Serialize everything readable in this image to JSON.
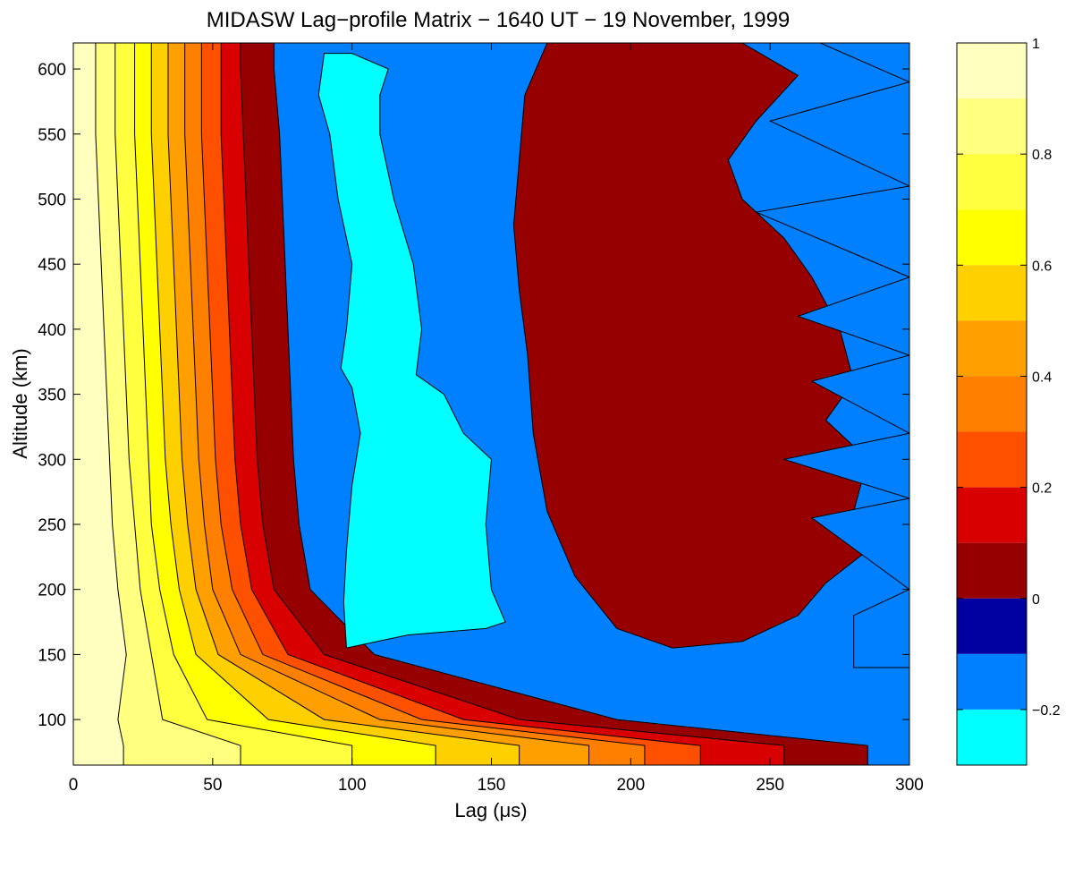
{
  "chart_data": {
    "type": "heatmap",
    "title": "MIDASW Lag−profile Matrix − 1640 UT − 19 November, 1999",
    "xlabel_parts": [
      "Lag (",
      "μ",
      "s)"
    ],
    "ylabel": "Altitude (km)",
    "xlim": [
      0,
      300
    ],
    "ylim": [
      65,
      620
    ],
    "x_ticks": [
      0,
      50,
      100,
      150,
      200,
      250,
      300
    ],
    "x_tick_labels": [
      "0",
      "50",
      "100",
      "150",
      "200",
      "250",
      "300"
    ],
    "y_ticks": [
      100,
      150,
      200,
      250,
      300,
      350,
      400,
      450,
      500,
      550,
      600
    ],
    "y_tick_labels": [
      "100",
      "150",
      "200",
      "250",
      "300",
      "350",
      "400",
      "450",
      "500",
      "550",
      "600"
    ],
    "colorbar": {
      "clim": [
        -0.3,
        1.0
      ],
      "ticks": [
        1,
        0.8,
        0.6,
        0.4,
        0.2,
        0,
        -0.2
      ],
      "tick_labels": [
        "1",
        "0.8",
        "0.6",
        "0.4",
        "0.2",
        "0",
        "−0.2"
      ],
      "levels": [
        {
          "from": 0.9,
          "to": 1.0,
          "color": "#ffffc0"
        },
        {
          "from": 0.8,
          "to": 0.9,
          "color": "#ffff80"
        },
        {
          "from": 0.7,
          "to": 0.8,
          "color": "#ffff40"
        },
        {
          "from": 0.6,
          "to": 0.7,
          "color": "#ffff00"
        },
        {
          "from": 0.5,
          "to": 0.6,
          "color": "#ffd000"
        },
        {
          "from": 0.4,
          "to": 0.5,
          "color": "#ffa000"
        },
        {
          "from": 0.3,
          "to": 0.4,
          "color": "#ff8000"
        },
        {
          "from": 0.2,
          "to": 0.3,
          "color": "#ff5000"
        },
        {
          "from": 0.1,
          "to": 0.2,
          "color": "#d80000"
        },
        {
          "from": 0.0,
          "to": 0.1,
          "color": "#960000"
        },
        {
          "from": -0.1,
          "to": 0.0,
          "color": "#0000a0"
        },
        {
          "from": -0.2,
          "to": -0.1,
          "color": "#0080ff"
        },
        {
          "from": -0.3,
          "to": -0.2,
          "color": "#00ffff"
        }
      ]
    },
    "bands": [
      {
        "level": 0.9,
        "color": "#ffffc0",
        "lag_at_altitude": [
          [
            80,
            18
          ],
          [
            100,
            16
          ],
          [
            150,
            19
          ],
          [
            200,
            16
          ],
          [
            250,
            14
          ],
          [
            300,
            13
          ],
          [
            350,
            12
          ],
          [
            400,
            11
          ],
          [
            450,
            10
          ],
          [
            500,
            9
          ],
          [
            550,
            8
          ],
          [
            600,
            8
          ]
        ]
      },
      {
        "level": 0.8,
        "color": "#ffff80",
        "lag_at_altitude": [
          [
            80,
            60
          ],
          [
            100,
            32
          ],
          [
            150,
            28
          ],
          [
            200,
            24
          ],
          [
            250,
            22
          ],
          [
            300,
            20
          ],
          [
            350,
            19
          ],
          [
            400,
            18
          ],
          [
            450,
            17
          ],
          [
            500,
            16
          ],
          [
            550,
            15
          ],
          [
            600,
            15
          ]
        ]
      },
      {
        "level": 0.7,
        "color": "#ffff40",
        "lag_at_altitude": [
          [
            80,
            100
          ],
          [
            100,
            48
          ],
          [
            150,
            36
          ],
          [
            200,
            31
          ],
          [
            250,
            28
          ],
          [
            300,
            27
          ],
          [
            350,
            26
          ],
          [
            400,
            25
          ],
          [
            450,
            24
          ],
          [
            500,
            23
          ],
          [
            550,
            22
          ],
          [
            600,
            22
          ]
        ]
      },
      {
        "level": 0.6,
        "color": "#ffff00",
        "lag_at_altitude": [
          [
            80,
            130
          ],
          [
            100,
            70
          ],
          [
            150,
            44
          ],
          [
            200,
            38
          ],
          [
            250,
            35
          ],
          [
            300,
            33
          ],
          [
            350,
            32
          ],
          [
            400,
            31
          ],
          [
            450,
            30
          ],
          [
            500,
            29
          ],
          [
            550,
            28
          ],
          [
            600,
            28
          ]
        ]
      },
      {
        "level": 0.5,
        "color": "#ffd000",
        "lag_at_altitude": [
          [
            80,
            160
          ],
          [
            100,
            90
          ],
          [
            150,
            52
          ],
          [
            200,
            44
          ],
          [
            250,
            41
          ],
          [
            300,
            39
          ],
          [
            350,
            38
          ],
          [
            400,
            37
          ],
          [
            450,
            36
          ],
          [
            500,
            35
          ],
          [
            550,
            34
          ],
          [
            600,
            34
          ]
        ]
      },
      {
        "level": 0.4,
        "color": "#ffa000",
        "lag_at_altitude": [
          [
            80,
            185
          ],
          [
            100,
            110
          ],
          [
            150,
            60
          ],
          [
            200,
            50
          ],
          [
            250,
            47
          ],
          [
            300,
            45
          ],
          [
            350,
            44
          ],
          [
            400,
            43
          ],
          [
            450,
            42
          ],
          [
            500,
            41
          ],
          [
            550,
            40
          ],
          [
            600,
            40
          ]
        ]
      },
      {
        "level": 0.3,
        "color": "#ff8000",
        "lag_at_altitude": [
          [
            80,
            205
          ],
          [
            100,
            125
          ],
          [
            150,
            68
          ],
          [
            200,
            57
          ],
          [
            250,
            53
          ],
          [
            300,
            51
          ],
          [
            350,
            50
          ],
          [
            400,
            49
          ],
          [
            450,
            48
          ],
          [
            500,
            47
          ],
          [
            550,
            46
          ],
          [
            600,
            46
          ]
        ]
      },
      {
        "level": 0.2,
        "color": "#ff5000",
        "lag_at_altitude": [
          [
            80,
            225
          ],
          [
            100,
            140
          ],
          [
            150,
            77
          ],
          [
            200,
            64
          ],
          [
            250,
            60
          ],
          [
            300,
            58
          ],
          [
            350,
            57
          ],
          [
            400,
            56
          ],
          [
            450,
            55
          ],
          [
            500,
            54
          ],
          [
            550,
            53
          ],
          [
            600,
            53
          ]
        ]
      },
      {
        "level": 0.1,
        "color": "#d80000",
        "lag_at_altitude": [
          [
            80,
            255
          ],
          [
            100,
            160
          ],
          [
            150,
            90
          ],
          [
            200,
            72
          ],
          [
            250,
            68
          ],
          [
            300,
            66
          ],
          [
            350,
            65
          ],
          [
            400,
            64
          ],
          [
            450,
            63
          ],
          [
            500,
            62
          ],
          [
            550,
            61
          ],
          [
            600,
            60
          ]
        ]
      },
      {
        "level": 0.0,
        "color": "#960000",
        "lag_at_altitude": [
          [
            80,
            285
          ],
          [
            100,
            195
          ],
          [
            150,
            108
          ],
          [
            200,
            85
          ],
          [
            250,
            81
          ],
          [
            300,
            79
          ],
          [
            350,
            78
          ],
          [
            400,
            77
          ],
          [
            450,
            76
          ],
          [
            500,
            75
          ],
          [
            550,
            74
          ],
          [
            600,
            72
          ]
        ]
      },
      {
        "level": -0.1,
        "color": "#0080ff",
        "lag_at_altitude": [
          [
            80,
            300
          ],
          [
            100,
            300
          ],
          [
            150,
            300
          ],
          [
            200,
            300
          ],
          [
            250,
            300
          ],
          [
            300,
            300
          ],
          [
            350,
            300
          ],
          [
            400,
            300
          ],
          [
            450,
            300
          ],
          [
            500,
            300
          ],
          [
            550,
            300
          ],
          [
            600,
            300
          ]
        ]
      }
    ],
    "regions": [
      {
        "level": -0.2,
        "color": "#00ffff",
        "boundary": [
          [
            98,
            155
          ],
          [
            120,
            165
          ],
          [
            148,
            170
          ],
          [
            155,
            175
          ],
          [
            150,
            200
          ],
          [
            148,
            250
          ],
          [
            150,
            300
          ],
          [
            140,
            320
          ],
          [
            133,
            350
          ],
          [
            123,
            365
          ],
          [
            125,
            400
          ],
          [
            122,
            450
          ],
          [
            115,
            500
          ],
          [
            110,
            550
          ],
          [
            110,
            580
          ],
          [
            113,
            600
          ],
          [
            100,
            612
          ],
          [
            90,
            612
          ],
          [
            88,
            580
          ],
          [
            92,
            550
          ],
          [
            95,
            500
          ],
          [
            100,
            450
          ],
          [
            98,
            400
          ],
          [
            96,
            370
          ],
          [
            100,
            355
          ],
          [
            103,
            320
          ],
          [
            100,
            280
          ],
          [
            98,
            230
          ],
          [
            97,
            190
          ]
        ]
      },
      {
        "level": 0.0,
        "color": "#960000",
        "boundary": [
          [
            170,
            620
          ],
          [
            240,
            620
          ],
          [
            260,
            595
          ],
          [
            245,
            560
          ],
          [
            235,
            530
          ],
          [
            240,
            500
          ],
          [
            255,
            470
          ],
          [
            265,
            440
          ],
          [
            275,
            400
          ],
          [
            280,
            360
          ],
          [
            270,
            330
          ],
          [
            285,
            300
          ],
          [
            280,
            260
          ],
          [
            285,
            230
          ],
          [
            270,
            205
          ],
          [
            260,
            180
          ],
          [
            240,
            160
          ],
          [
            215,
            155
          ],
          [
            195,
            170
          ],
          [
            180,
            210
          ],
          [
            170,
            260
          ],
          [
            165,
            320
          ],
          [
            163,
            380
          ],
          [
            160,
            430
          ],
          [
            158,
            480
          ],
          [
            160,
            530
          ],
          [
            162,
            580
          ]
        ]
      },
      {
        "level": -0.1,
        "color": "#0080ff",
        "boundary": [
          [
            268,
            620
          ],
          [
            300,
            620
          ],
          [
            300,
            140
          ],
          [
            280,
            140
          ],
          [
            280,
            180
          ],
          [
            300,
            200
          ],
          [
            265,
            255
          ],
          [
            300,
            270
          ],
          [
            255,
            300
          ],
          [
            300,
            320
          ],
          [
            265,
            360
          ],
          [
            300,
            380
          ],
          [
            260,
            410
          ],
          [
            300,
            440
          ],
          [
            245,
            490
          ],
          [
            300,
            510
          ],
          [
            250,
            560
          ],
          [
            300,
            590
          ]
        ]
      }
    ]
  }
}
